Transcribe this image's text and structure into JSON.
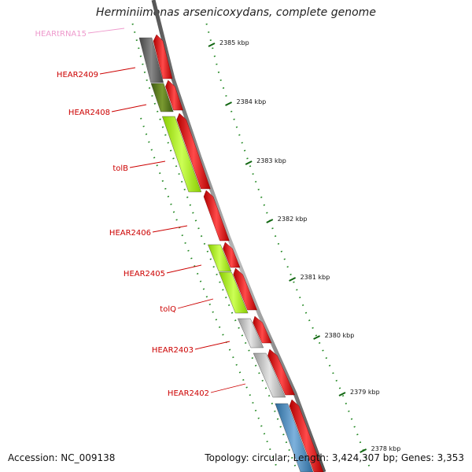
{
  "title": "Herminiimonas arsenicoxydans, complete genome",
  "footer": {
    "accession": "Accession: NC_009138",
    "summary": "Topology: circular; Length: 3,424,307 bp; Genes: 3,353"
  },
  "ruler": {
    "ticks": [
      {
        "label": "2385 kbp",
        "kbp": 2385
      },
      {
        "label": "2384 kbp",
        "kbp": 2384
      },
      {
        "label": "2383 kbp",
        "kbp": 2383
      },
      {
        "label": "2382 kbp",
        "kbp": 2382
      },
      {
        "label": "2381 kbp",
        "kbp": 2381
      },
      {
        "label": "2380 kbp",
        "kbp": 2380
      },
      {
        "label": "2379 kbp",
        "kbp": 2379
      },
      {
        "label": "2378 kbp",
        "kbp": 2378
      }
    ]
  },
  "colors": {
    "backbone": "#8a8a8a",
    "reverse_strand": "#ee1111",
    "label_red": "#cc0000",
    "label_pink": "#ee99cc",
    "dots": "#228822"
  },
  "genes": [
    {
      "label": "HEARtRNA15",
      "color": "#ee99cc"
    },
    {
      "label": "HEAR2409",
      "color": "#cc0000"
    },
    {
      "label": "HEAR2408",
      "color": "#cc0000"
    },
    {
      "label": "tolB",
      "color": "#cc0000"
    },
    {
      "label": "HEAR2406",
      "color": "#cc0000"
    },
    {
      "label": "HEAR2405",
      "color": "#cc0000"
    },
    {
      "label": "tolQ",
      "color": "#cc0000"
    },
    {
      "label": "HEAR2403",
      "color": "#cc0000"
    },
    {
      "label": "HEAR2402",
      "color": "#cc0000"
    }
  ]
}
